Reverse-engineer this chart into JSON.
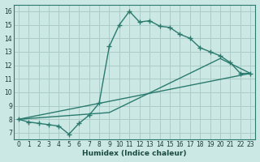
{
  "xlabel": "Humidex (Indice chaleur)",
  "background_color": "#cce8e4",
  "grid_color": "#aaccc8",
  "line_color": "#2a7a6e",
  "xlim": [
    -0.5,
    23.5
  ],
  "ylim": [
    6.5,
    16.5
  ],
  "xticks": [
    0,
    1,
    2,
    3,
    4,
    5,
    6,
    7,
    8,
    9,
    10,
    11,
    12,
    13,
    14,
    15,
    16,
    17,
    18,
    19,
    20,
    21,
    22,
    23
  ],
  "yticks": [
    7,
    8,
    9,
    10,
    11,
    12,
    13,
    14,
    15,
    16
  ],
  "line1_x": [
    0,
    1,
    2,
    3,
    4,
    5,
    6,
    7,
    8,
    9,
    10,
    11,
    12,
    13,
    14,
    15,
    16,
    17,
    18,
    19,
    20,
    21,
    22,
    23
  ],
  "line1_y": [
    8.0,
    7.8,
    7.7,
    7.6,
    7.5,
    6.9,
    7.7,
    8.3,
    9.2,
    13.4,
    15.0,
    16.0,
    15.2,
    15.3,
    14.9,
    14.8,
    14.3,
    14.0,
    13.3,
    13.0,
    12.7,
    12.2,
    11.4,
    11.4
  ],
  "line2_x": [
    0,
    23
  ],
  "line2_y": [
    8.0,
    11.4
  ],
  "line3_x": [
    0,
    9,
    20,
    23
  ],
  "line3_y": [
    8.0,
    8.5,
    12.5,
    11.4
  ]
}
